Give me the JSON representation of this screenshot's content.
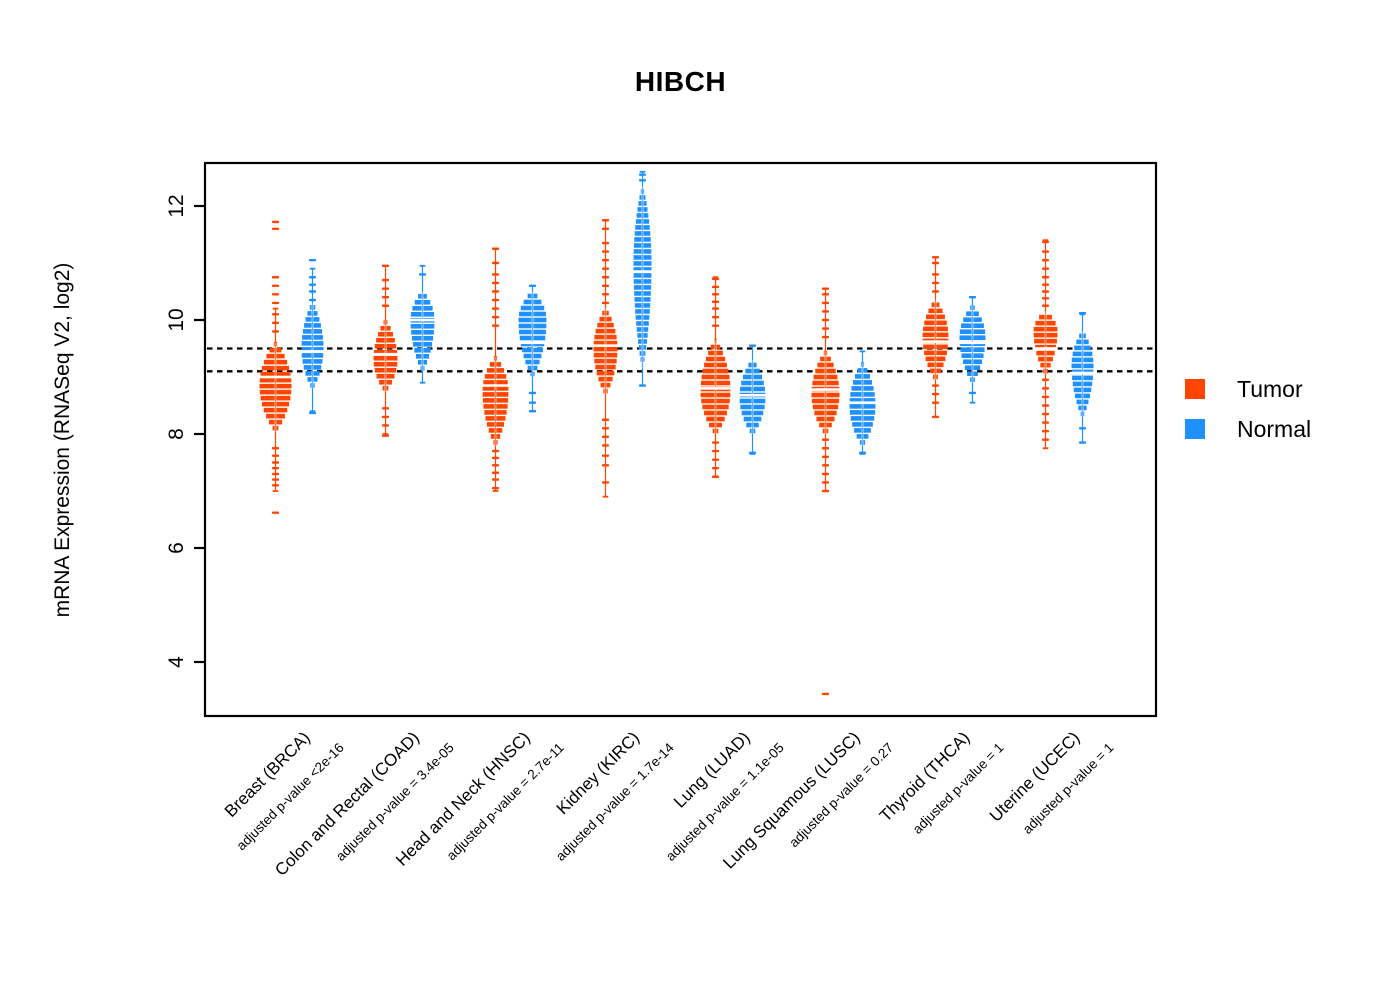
{
  "title": "HIBCH",
  "y_axis": {
    "label": "mRNA Expression (RNASeq V2, log2)",
    "ticks": [
      12,
      10,
      8,
      6,
      4
    ]
  },
  "legend": [
    {
      "label": "Tumor",
      "color": "#FF4500"
    },
    {
      "label": "Normal",
      "color": "#1E90FF"
    }
  ],
  "chart_data": {
    "type": "beanplot-violin",
    "title": "HIBCH",
    "ylabel": "mRNA Expression (RNASeq V2, log2)",
    "ylim": [
      3.05,
      12.75
    ],
    "reference_lines": [
      9.5,
      9.1
    ],
    "series_colors": {
      "tumor": "#FF4500",
      "normal": "#1E90FF"
    },
    "groups": [
      {
        "code": "BRCA",
        "label": "Breast (BRCA)",
        "pvalue_label": "adjusted p-value <2e-16",
        "tumor": {
          "median": 9.0,
          "peak": 8.85,
          "body": [
            8.05,
            9.6
          ],
          "tail": [
            7.0,
            10.2
          ],
          "halfwidth": 16,
          "outliers": [
            9.8,
            9.95,
            10.1,
            10.3,
            10.45,
            10.6,
            10.75,
            11.6,
            11.72,
            7.75,
            7.62,
            7.5,
            7.4,
            7.3,
            7.2,
            7.1,
            6.62
          ]
        },
        "normal": {
          "median": 9.45,
          "peak": 9.5,
          "body": [
            8.8,
            10.3
          ],
          "tail": [
            8.4,
            10.9
          ],
          "halfwidth": 11,
          "outliers": [
            10.35,
            10.5,
            10.62,
            10.75,
            11.05,
            8.37
          ]
        }
      },
      {
        "code": "COAD",
        "label": "Colon and Rectal (COAD)",
        "pvalue_label": "adjusted p-value = 3.4e-05",
        "tumor": {
          "median": 9.4,
          "peak": 9.3,
          "body": [
            8.75,
            10.0
          ],
          "tail": [
            8.0,
            10.95
          ],
          "halfwidth": 12,
          "outliers": [
            10.25,
            10.4,
            10.55,
            10.7,
            10.95,
            8.45,
            8.3,
            8.15,
            7.97
          ]
        },
        "normal": {
          "median": 10.0,
          "peak": 10.0,
          "body": [
            9.1,
            10.5
          ],
          "tail": [
            8.9,
            10.95
          ],
          "halfwidth": 12,
          "outliers": [
            10.8
          ]
        }
      },
      {
        "code": "HNSC",
        "label": "Head and Neck (HNSC)",
        "pvalue_label": "adjusted p-value = 2.7e-11",
        "tumor": {
          "median": 8.85,
          "peak": 8.75,
          "body": [
            7.8,
            9.35
          ],
          "tail": [
            7.0,
            11.25
          ],
          "halfwidth": 13,
          "outliers": [
            9.9,
            10.05,
            10.2,
            10.35,
            10.5,
            10.65,
            10.8,
            11.0,
            11.25,
            7.7,
            7.58,
            7.45,
            7.32,
            7.2,
            7.05
          ]
        },
        "normal": {
          "median": 9.6,
          "peak": 10.0,
          "body": [
            9.0,
            10.5
          ],
          "tail": [
            8.4,
            10.6
          ],
          "halfwidth": 14,
          "outliers": [
            10.6,
            8.72,
            8.55,
            8.4
          ]
        }
      },
      {
        "code": "KIRC",
        "label": "Kidney (KIRC)",
        "pvalue_label": "adjusted p-value = 1.7e-14",
        "tumor": {
          "median": 9.55,
          "peak": 9.5,
          "body": [
            8.7,
            10.2
          ],
          "tail": [
            6.9,
            11.75
          ],
          "halfwidth": 12,
          "outliers": [
            10.3,
            10.45,
            10.6,
            10.75,
            10.9,
            11.05,
            11.2,
            11.35,
            11.6,
            11.75,
            8.25,
            8.1,
            7.95,
            7.8,
            7.62,
            7.45,
            7.15
          ]
        },
        "normal": {
          "median": 10.85,
          "peak": 11.0,
          "body": [
            9.15,
            12.35
          ],
          "tail": [
            8.85,
            12.6
          ],
          "halfwidth": 9,
          "outliers": [
            12.45,
            12.55,
            8.85
          ]
        }
      },
      {
        "code": "LUAD",
        "label": "Lung (LUAD)",
        "pvalue_label": "adjusted p-value = 1.1e-05",
        "tumor": {
          "median": 8.8,
          "peak": 8.75,
          "body": [
            8.0,
            9.65
          ],
          "tail": [
            7.25,
            10.75
          ],
          "halfwidth": 15,
          "outliers": [
            9.9,
            10.05,
            10.2,
            10.32,
            10.45,
            10.58,
            10.72,
            7.85,
            7.7,
            7.55,
            7.4,
            7.25
          ]
        },
        "normal": {
          "median": 8.68,
          "peak": 8.65,
          "body": [
            8.0,
            9.3
          ],
          "tail": [
            7.65,
            9.55
          ],
          "halfwidth": 13,
          "outliers": [
            9.55,
            7.67
          ]
        }
      },
      {
        "code": "LUSC",
        "label": "Lung Squamous (LUSC)",
        "pvalue_label": "adjusted p-value = 0.27",
        "tumor": {
          "median": 8.78,
          "peak": 8.7,
          "body": [
            8.0,
            9.45
          ],
          "tail": [
            7.0,
            10.55
          ],
          "halfwidth": 14,
          "outliers": [
            9.7,
            9.85,
            10.0,
            10.15,
            10.3,
            10.45,
            10.55,
            7.9,
            7.75,
            7.6,
            7.45,
            7.3,
            7.15,
            7.0,
            3.44
          ]
        },
        "normal": {
          "median": 8.55,
          "peak": 8.5,
          "body": [
            7.8,
            9.25
          ],
          "tail": [
            7.65,
            9.45
          ],
          "halfwidth": 13,
          "outliers": [
            7.67
          ]
        }
      },
      {
        "code": "THCA",
        "label": "Thyroid (THCA)",
        "pvalue_label": "adjusted p-value = 1",
        "tumor": {
          "median": 9.62,
          "peak": 9.7,
          "body": [
            8.95,
            10.35
          ],
          "tail": [
            8.3,
            11.1
          ],
          "halfwidth": 13,
          "outliers": [
            10.5,
            10.65,
            10.8,
            11.0,
            11.1,
            8.85,
            8.7,
            8.55,
            8.3
          ]
        },
        "normal": {
          "median": 9.6,
          "peak": 9.7,
          "body": [
            8.9,
            10.25
          ],
          "tail": [
            8.55,
            10.4
          ],
          "halfwidth": 13,
          "outliers": [
            10.4,
            8.72
          ]
        }
      },
      {
        "code": "UCEC",
        "label": "Uterine (UCEC)",
        "pvalue_label": "adjusted p-value = 1",
        "tumor": {
          "median": 9.5,
          "peak": 9.8,
          "body": [
            9.05,
            10.15
          ],
          "tail": [
            7.75,
            11.4
          ],
          "halfwidth": 12,
          "outliers": [
            10.25,
            10.38,
            10.5,
            10.62,
            10.75,
            10.9,
            11.05,
            11.2,
            11.37,
            8.95,
            8.8,
            8.65,
            8.5,
            8.35,
            8.2,
            8.05,
            7.9
          ]
        },
        "normal": {
          "median": 9.07,
          "peak": 9.2,
          "body": [
            8.3,
            9.8
          ],
          "tail": [
            7.85,
            10.1
          ],
          "halfwidth": 11,
          "outliers": [
            10.12,
            8.1,
            7.85
          ]
        }
      }
    ]
  }
}
